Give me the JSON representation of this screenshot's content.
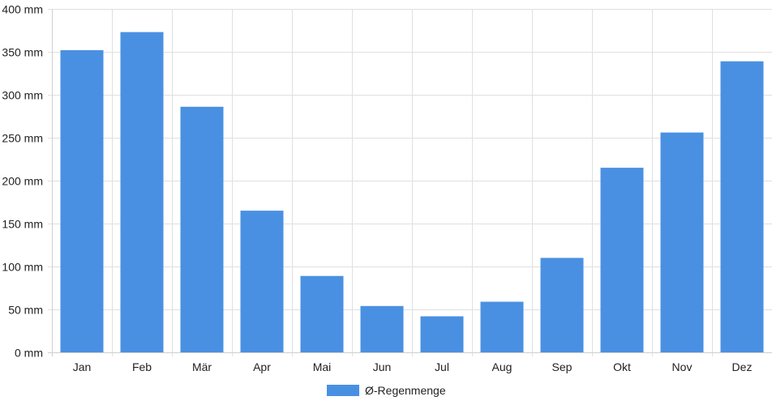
{
  "chart_data": {
    "type": "bar",
    "categories": [
      "Jan",
      "Feb",
      "Mär",
      "Apr",
      "Mai",
      "Jun",
      "Jul",
      "Aug",
      "Sep",
      "Okt",
      "Nov",
      "Dez"
    ],
    "series": [
      {
        "name": "Ø-Regenmenge",
        "values": [
          352,
          373,
          286,
          165,
          89,
          54,
          42,
          59,
          110,
          215,
          256,
          339
        ]
      }
    ],
    "ylim": [
      0,
      400
    ],
    "yticks": [
      0,
      50,
      100,
      150,
      200,
      250,
      300,
      350,
      400
    ],
    "y_unit": "mm",
    "ytick_labels": [
      "0 mm",
      "50 mm",
      "100 mm",
      "150 mm",
      "200 mm",
      "250 mm",
      "300 mm",
      "350 mm",
      "400 mm"
    ],
    "grid": true,
    "legend_position": "bottom",
    "bar_color": "#4a90e2",
    "grid_color": "#e0e0e0"
  }
}
